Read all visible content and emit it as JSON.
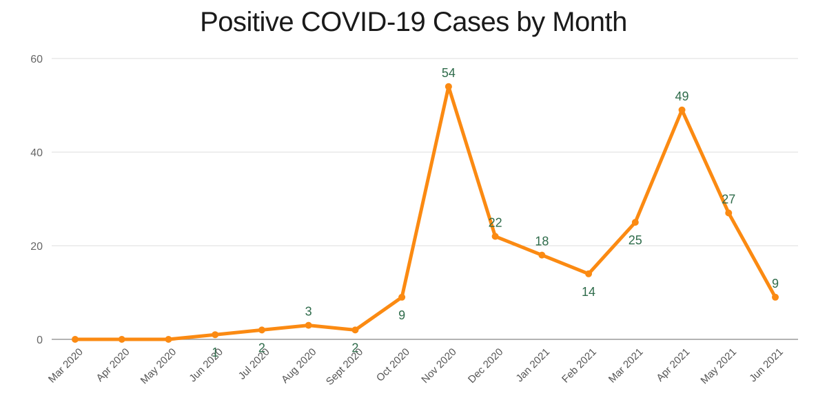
{
  "chart_data": {
    "type": "line",
    "title": "Positive COVID-19 Cases by Month",
    "xlabel": "",
    "ylabel": "",
    "ylim": [
      0,
      60
    ],
    "yticks": [
      0,
      20,
      40,
      60
    ],
    "grid": true,
    "categories": [
      "Mar 2020",
      "Apr 2020",
      "May 2020",
      "Jun 2020",
      "Jul 2020",
      "Aug 2020",
      "Sept 2020",
      "Oct 2020",
      "Nov 2020",
      "Dec 2020",
      "Jan 2021",
      "Feb 2021",
      "Mar 2021",
      "Apr 2021",
      "May 2021",
      "Jun 2021"
    ],
    "series": [
      {
        "values": [
          0,
          0,
          0,
          1,
          2,
          3,
          2,
          9,
          54,
          22,
          18,
          14,
          25,
          49,
          27,
          9
        ],
        "data_labels": [
          "",
          "",
          "",
          "1",
          "2",
          "3",
          "2",
          "9",
          "54",
          "22",
          "18",
          "14",
          "25",
          "49",
          "27",
          "9"
        ]
      }
    ],
    "colors": {
      "line": "#fb8a12",
      "label": "#2e6b4a",
      "grid": "#dcdcdc",
      "axis": "#9a9a9a"
    }
  }
}
